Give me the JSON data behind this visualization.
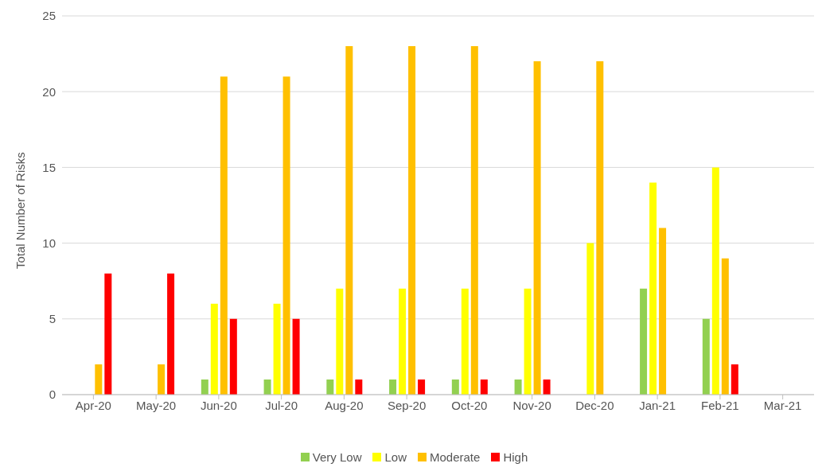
{
  "chart_data": {
    "type": "bar",
    "ylabel": "Total Number of Risks",
    "categories": [
      "Apr-20",
      "May-20",
      "Jun-20",
      "Jul-20",
      "Aug-20",
      "Sep-20",
      "Oct-20",
      "Nov-20",
      "Dec-20",
      "Jan-21",
      "Feb-21",
      "Mar-21"
    ],
    "series": [
      {
        "name": "Very Low",
        "color": "#92d050",
        "values": [
          null,
          null,
          1,
          1,
          1,
          1,
          1,
          1,
          null,
          7,
          5,
          null
        ]
      },
      {
        "name": "Low",
        "color": "#ffff00",
        "values": [
          null,
          null,
          6,
          6,
          7,
          7,
          7,
          7,
          10,
          14,
          15,
          null
        ]
      },
      {
        "name": "Moderate",
        "color": "#ffc000",
        "values": [
          2,
          2,
          21,
          21,
          23,
          23,
          23,
          22,
          22,
          11,
          9,
          null
        ]
      },
      {
        "name": "High",
        "color": "#ff0000",
        "values": [
          8,
          8,
          5,
          5,
          1,
          1,
          1,
          1,
          null,
          null,
          2,
          null
        ]
      }
    ],
    "ylim": [
      0,
      25
    ],
    "yticks": [
      0,
      5,
      10,
      15,
      20,
      25
    ],
    "grid": "y",
    "legend": "bottom"
  }
}
